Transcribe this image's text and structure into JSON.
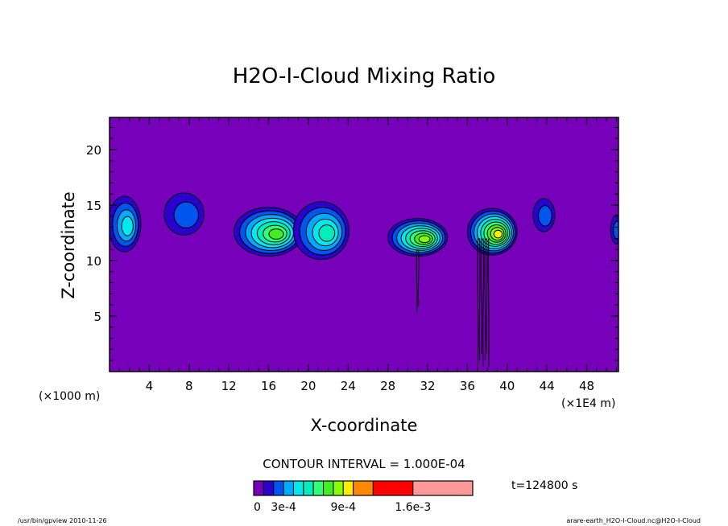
{
  "chart_data": {
    "type": "heatmap",
    "title": "H2O-I-Cloud Mixing Ratio",
    "xlabel": "X-coordinate",
    "ylabel": "Z-coordinate",
    "x_unit_left": "(×1000 m)",
    "x_unit_right": "(×1E4 m)",
    "x_ticks": [
      4,
      8,
      12,
      16,
      20,
      24,
      28,
      32,
      36,
      40,
      44,
      48
    ],
    "y_ticks": [
      5,
      10,
      15,
      20
    ],
    "xlim": [
      0,
      51.2
    ],
    "ylim": [
      0,
      22.9
    ],
    "background_value": 0,
    "contour_interval": 0.0001,
    "contour_interval_label": "CONTOUR INTERVAL = 1.000E-04",
    "time_label": "t=124800 s",
    "colorbar": {
      "bounds": [
        0,
        0.0001,
        0.0002,
        0.0003,
        0.0004,
        0.0005,
        0.0006,
        0.0007,
        0.0008,
        0.0009,
        0.001,
        0.0012,
        0.0016,
        0.0022
      ],
      "colors": [
        "#7700bb",
        "#2a00d0",
        "#0055ee",
        "#00aaff",
        "#00e8f0",
        "#00eebb",
        "#33ff77",
        "#44ee22",
        "#88ff00",
        "#ffee00",
        "#ff8800",
        "#ff0000",
        "#ff9999"
      ],
      "tick_labels": [
        "0",
        "3e-4",
        "9e-4",
        "1.6e-3"
      ],
      "tick_values": [
        0,
        0.0003,
        0.0009,
        0.0016
      ]
    },
    "cloud_regions": [
      {
        "x_center": 1.5,
        "z_center": 13.3,
        "x_width": 3.3,
        "z_height": 5.0,
        "peak_value": 0.0004
      },
      {
        "x_center": 7.5,
        "z_center": 14.2,
        "x_width": 4.0,
        "z_height": 3.8,
        "peak_value": 0.0002
      },
      {
        "x_center": 16.0,
        "z_center": 12.6,
        "x_width": 7.0,
        "z_height": 4.4,
        "peak_value": 0.0007
      },
      {
        "x_center": 21.3,
        "z_center": 12.7,
        "x_width": 5.6,
        "z_height": 5.2,
        "peak_value": 0.0005
      },
      {
        "x_center": 31.0,
        "z_center": 12.1,
        "x_width": 6.0,
        "z_height": 3.4,
        "peak_value": 0.0008
      },
      {
        "x_center": 38.5,
        "z_center": 12.6,
        "x_width": 5.0,
        "z_height": 4.2,
        "peak_value": 0.0009
      },
      {
        "x_center": 43.7,
        "z_center": 14.1,
        "x_width": 2.2,
        "z_height": 3.0,
        "peak_value": 0.0002
      },
      {
        "x_center": 51.0,
        "z_center": 12.8,
        "x_width": 1.2,
        "z_height": 2.6,
        "peak_value": 0.0002
      }
    ],
    "grid": false
  },
  "footer": {
    "left": "/usr/bin/gpview  2010-11-26",
    "right": "arare-earth_H2O-I-Cloud.nc@H2O-I-Cloud"
  }
}
